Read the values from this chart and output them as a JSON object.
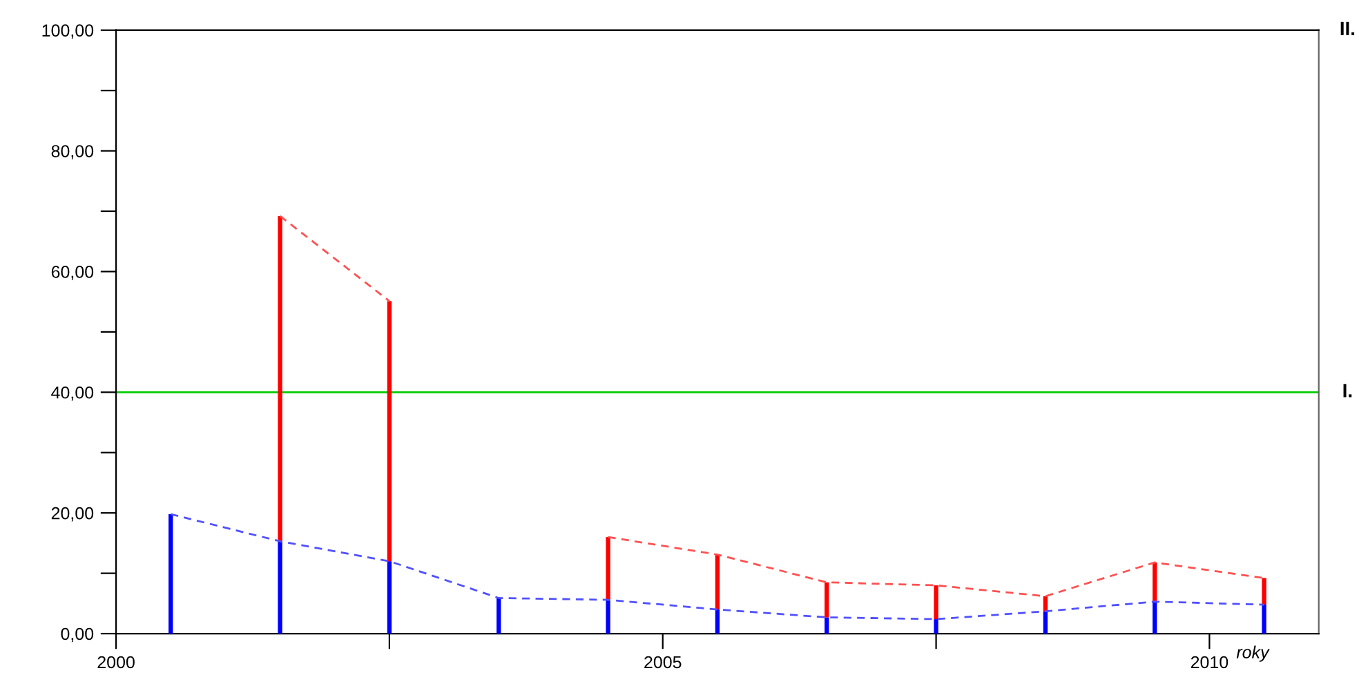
{
  "chart_data": {
    "type": "bar",
    "x": [
      2000.5,
      2001.5,
      2002.5,
      2003.5,
      2004.5,
      2005.5,
      2006.5,
      2007.5,
      2008.5,
      2009.5,
      2010.5
    ],
    "series": [
      {
        "color": "#0000ff",
        "values": [
          19.8,
          15.3,
          12.0,
          5.9,
          5.6,
          4.0,
          2.7,
          2.4,
          3.7,
          5.3,
          4.8
        ]
      },
      {
        "color": "#ff0000",
        "values": [
          null,
          53.9,
          43.1,
          null,
          10.4,
          9.1,
          5.8,
          5.6,
          2.5,
          6.5,
          4.4
        ]
      },
      {
        "type": "line",
        "line_style": "dashed",
        "color": "#ff5050",
        "values": [
          null,
          69.2,
          55.1,
          null,
          16.0,
          13.1,
          8.5,
          8.0,
          6.2,
          11.8,
          9.2
        ]
      },
      {
        "type": "line",
        "line_style": "dashed",
        "color": "#5050ff",
        "values": [
          19.8,
          15.3,
          12.0,
          5.9,
          5.6,
          4.0,
          2.7,
          2.4,
          3.7,
          5.3,
          4.8
        ]
      }
    ],
    "stacked": true,
    "xlabel": "roky",
    "xlim": [
      2000,
      2011
    ],
    "xticks": [
      2000,
      {
        "value": 2002.5,
        "label": null
      },
      2005,
      {
        "value": 2007.5,
        "label": null
      },
      2010
    ],
    "ylim": [
      0,
      100
    ],
    "yticks": [
      {
        "value": 0,
        "label": "0,00"
      },
      {
        "value": 10,
        "label": null
      },
      {
        "value": 20,
        "label": "20,00"
      },
      {
        "value": 30,
        "label": null
      },
      {
        "value": 40,
        "label": "40,00"
      },
      {
        "value": 50,
        "label": null
      },
      {
        "value": 60,
        "label": "60,00"
      },
      {
        "value": 70,
        "label": null
      },
      {
        "value": 80,
        "label": "80,00"
      },
      {
        "value": 90,
        "label": null
      },
      {
        "value": 100,
        "label": "100,00"
      }
    ],
    "ref_lines": [
      {
        "axis": "y",
        "value": 40,
        "label": "I.",
        "color": "#00cc00"
      },
      {
        "axis": "y",
        "value": 100,
        "label": "II.",
        "color": "#000000"
      }
    ],
    "grid": false,
    "legend": false
  }
}
